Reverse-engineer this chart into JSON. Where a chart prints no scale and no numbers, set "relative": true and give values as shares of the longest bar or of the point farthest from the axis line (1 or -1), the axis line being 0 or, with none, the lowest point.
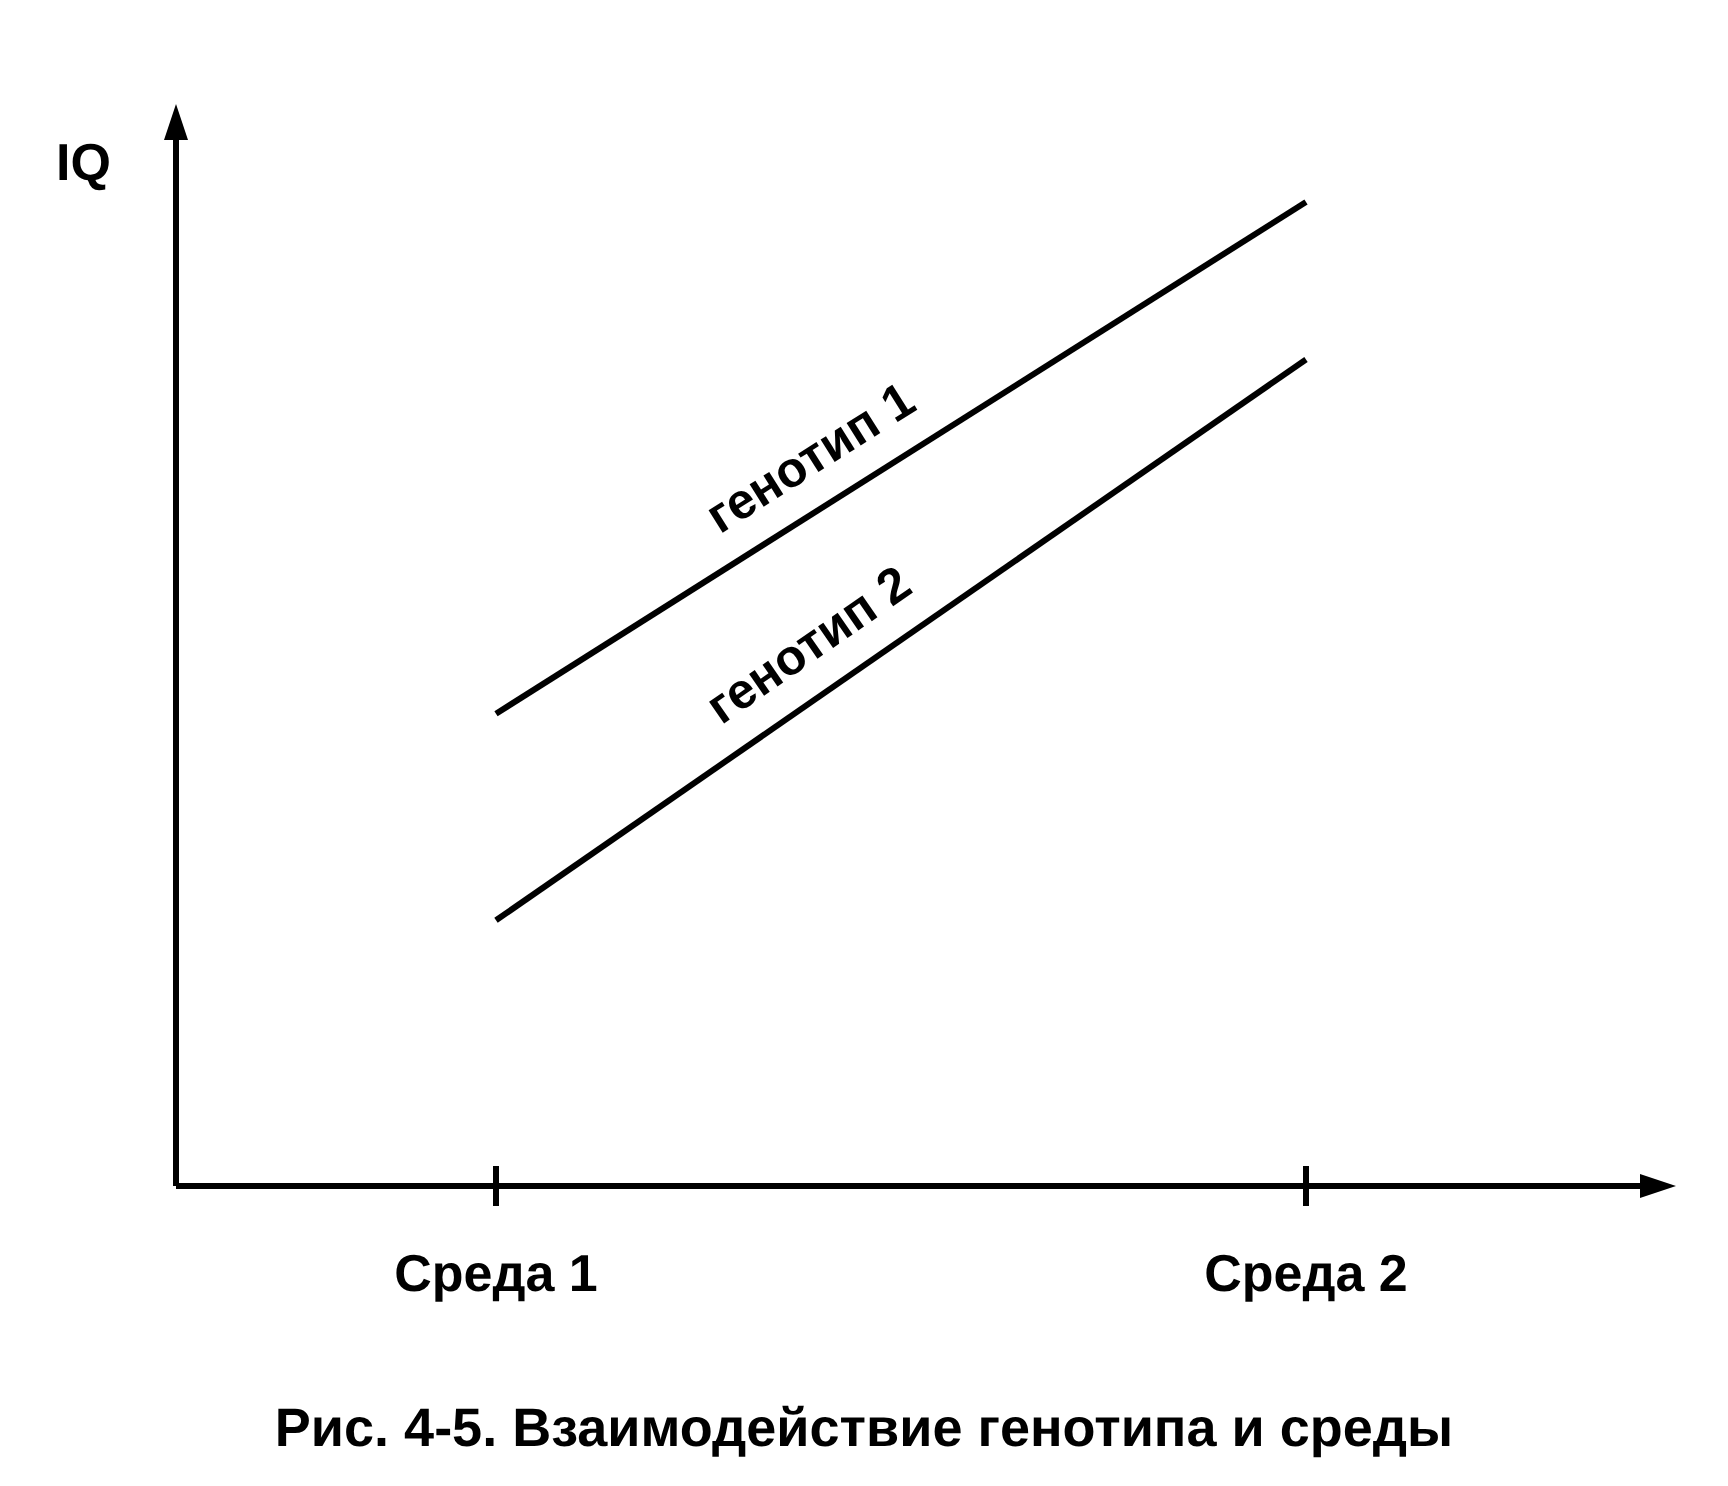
{
  "chart_data": {
    "type": "line",
    "title": "Рис. 4-5. Взаимодействие генотипа и среды",
    "ylabel": "IQ",
    "categories": [
      "Среда 1",
      "Среда 2"
    ],
    "relative": true,
    "legend": false,
    "grid": false,
    "marker": "none",
    "line_style": "solid",
    "series": [
      {
        "name": "генотип 1",
        "color": "#000000",
        "values": [
          0.48,
          1
        ]
      },
      {
        "name": "генотип 2",
        "color": "#000000",
        "values": [
          0.27,
          0.84
        ]
      }
    ]
  }
}
